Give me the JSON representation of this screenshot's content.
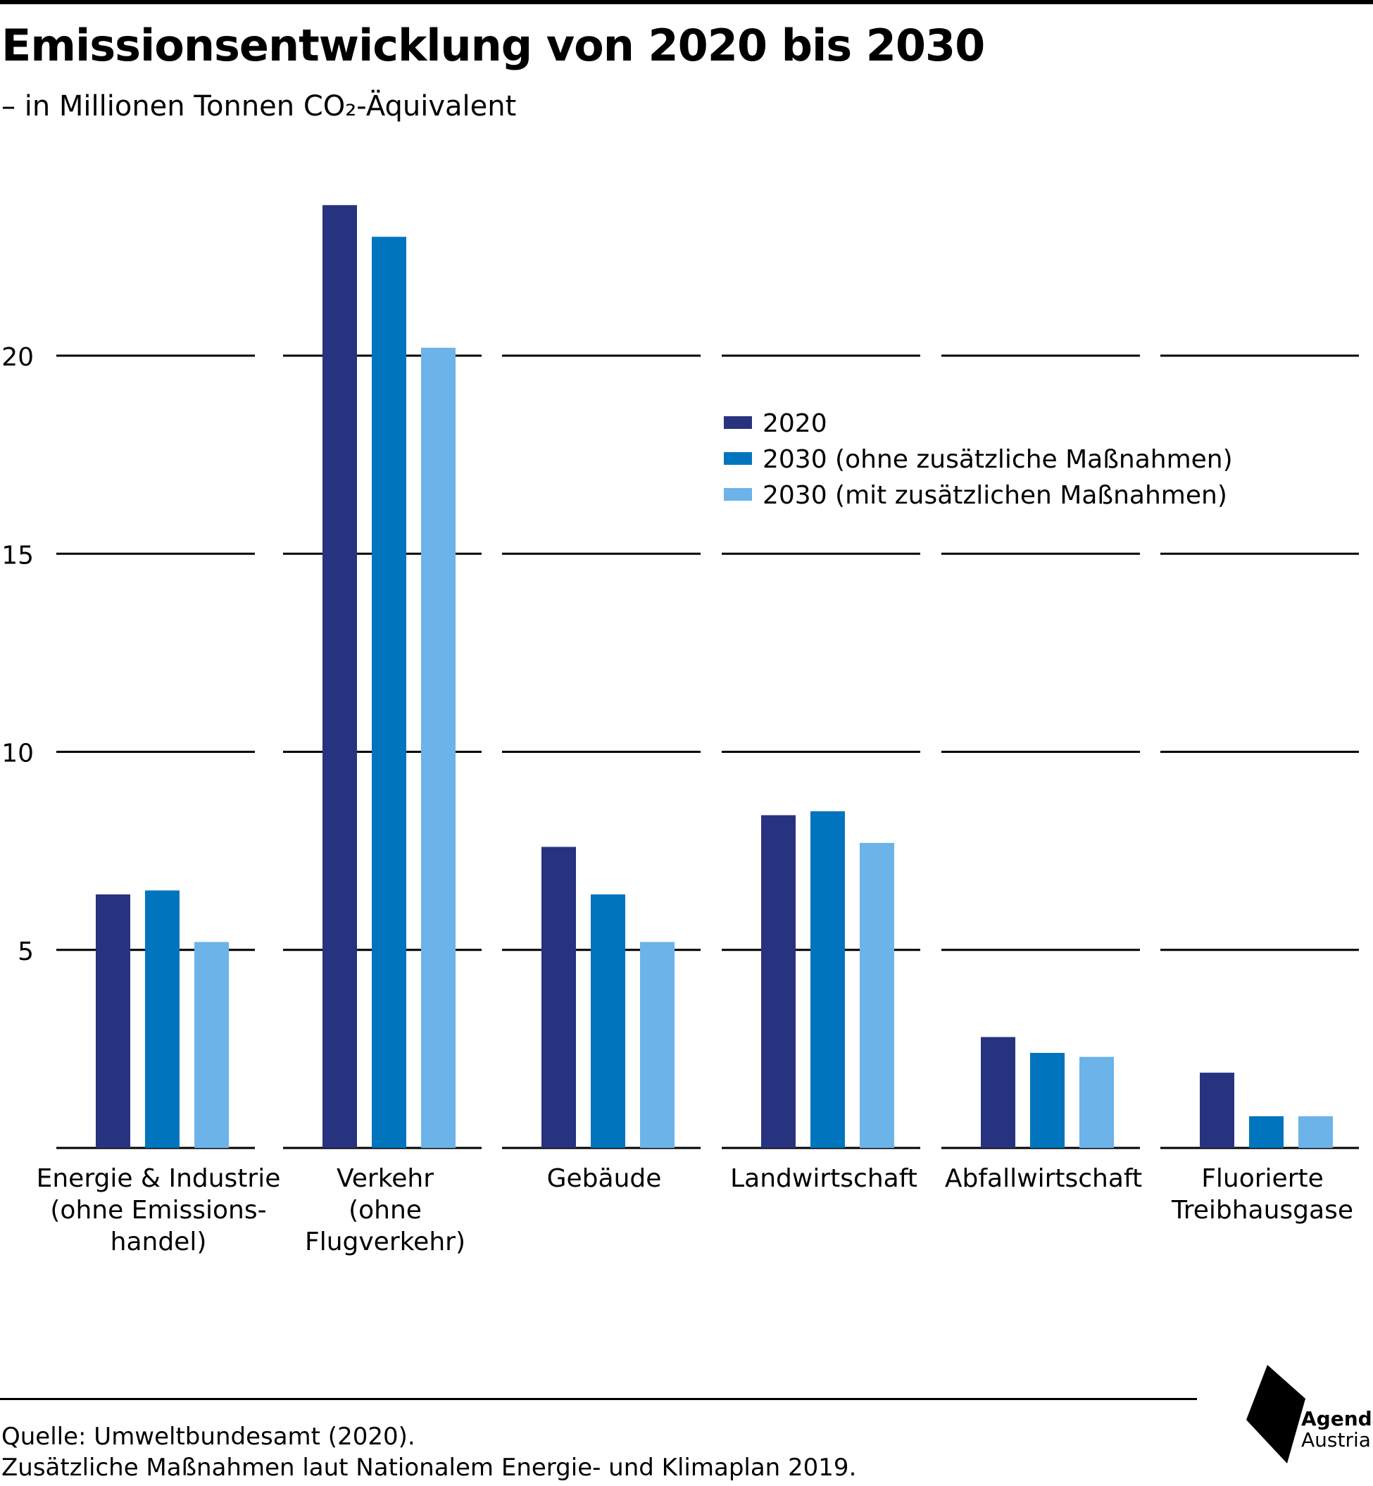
{
  "header": {
    "title": "Emissionsentwicklung von 2020 bis 2030",
    "subtitle": "– in Millionen Tonnen CO₂-Äquivalent"
  },
  "footer": {
    "source_line1": "Quelle: Umweltbundesamt (2020).",
    "source_line2": "Zusätzliche Maßnahmen laut Nationalem Energie- und Klimaplan 2019."
  },
  "logo": {
    "name": "agenda-austria-logo-icon",
    "line1": "Agenda",
    "line2": "Austria"
  },
  "colors": {
    "s2020": "#27337f",
    "s2030_ohne": "#0075bd",
    "s2030_mit": "#6bb3e9",
    "grid": "#000000"
  },
  "chart_data": {
    "type": "bar",
    "title": "Emissionsentwicklung von 2020 bis 2030",
    "subtitle": "– in Millionen Tonnen CO₂-Äquivalent",
    "categories": [
      [
        "Energie & Industrie",
        "(ohne Emissions-",
        "handel)"
      ],
      [
        "Verkehr",
        "(ohne",
        "Flugverkehr)"
      ],
      [
        "Gebäude"
      ],
      [
        "Landwirtschaft"
      ],
      [
        "Abfallwirtschaft"
      ],
      [
        "Fluorierte",
        "Treibhausgase"
      ]
    ],
    "series": [
      {
        "name": "2020",
        "values": [
          6.4,
          23.8,
          7.6,
          8.4,
          2.8,
          1.9
        ]
      },
      {
        "name": "2030 (ohne zusätzliche Maßnahmen)",
        "values": [
          6.5,
          23.0,
          6.4,
          8.5,
          2.4,
          0.8
        ]
      },
      {
        "name": "2030 (mit zusätzlichen Maßnahmen)",
        "values": [
          5.2,
          20.2,
          5.2,
          7.7,
          2.3,
          0.8
        ]
      }
    ],
    "yticks": [
      5,
      10,
      15,
      20
    ],
    "ylim": [
      0,
      25
    ],
    "grid": true,
    "legend_position": "top-right"
  }
}
